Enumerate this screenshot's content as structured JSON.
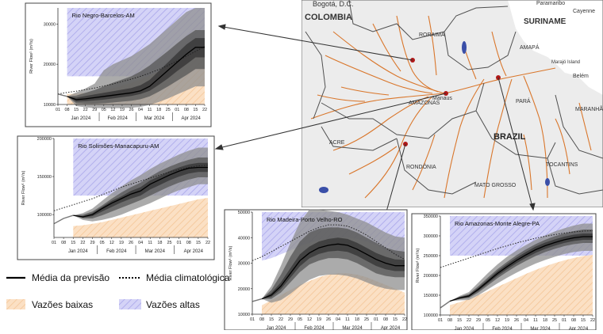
{
  "map": {
    "labels": {
      "bogota": "Bogotá, D.C.",
      "colombia": "COLOMBIA",
      "suriname": "SURINAME",
      "paramaribo": "Paramaribo",
      "cayenne": "Cayenne",
      "roraima": "RORAIMA",
      "amapa": "AMAPÁ",
      "marajo": "Marajó Island",
      "belem": "Belém",
      "amazonas": "AMAZONAS",
      "manaus": "Manaus",
      "para": "PARÁ",
      "maranhao": "MARANHÃO",
      "brazil": "BRAZIL",
      "acre": "ACRE",
      "rondonia": "RONDÔNIA",
      "tocantins": "TOCANTINS",
      "mato_grosso": "MATO GROSSO"
    },
    "colors": {
      "land": "#ececec",
      "river": "#d9762b",
      "border": "#4f4f4f",
      "station": "#b01818"
    }
  },
  "legend": {
    "forecast_mean": "Média da previsão",
    "climatology_mean": "Média climatológica",
    "low_flows": "Vazões baixas",
    "high_flows": "Vazões altas",
    "colors": {
      "low": "#f6cfa6",
      "high": "#b9b7f0"
    }
  },
  "chart_data": [
    {
      "type": "area",
      "title": "Rio Negro-Barcelos-AM",
      "ylabel": "River Flow¹ (m³/s)",
      "xlabel": "",
      "x": [
        "01",
        "08",
        "15",
        "22",
        "29",
        "05",
        "12",
        "19",
        "26",
        "04",
        "11",
        "18",
        "25",
        "01",
        "08",
        "15",
        "22"
      ],
      "month_labels": [
        "Jan 2024",
        "Feb 2024",
        "Mar 2024",
        "Apr 2024"
      ],
      "ylim": [
        10000,
        34000
      ],
      "yticks": [
        10000,
        20000,
        30000
      ],
      "ytick_labels": [
        "10000",
        "20000",
        "30000"
      ],
      "legend": "none",
      "grid": false,
      "high_threshold": [
        17000,
        17000,
        17000,
        17000,
        17000,
        17000,
        17000,
        17000,
        17000,
        17000,
        17000,
        17000,
        17000,
        17000,
        17000,
        17000,
        17000
      ],
      "low_threshold": [
        12500,
        12600,
        12700,
        12900,
        13100,
        13500,
        14000,
        14700,
        15400,
        16200,
        17200,
        18300,
        19500,
        20800,
        22000,
        23300,
        24500
      ],
      "climatology": [
        12600,
        13000,
        13300,
        13700,
        14100,
        14600,
        15100,
        15700,
        16300,
        17000,
        17800,
        18700,
        19700,
        20800,
        22000,
        23200,
        24400
      ],
      "observed": [
        12600,
        12000,
        null,
        null,
        null,
        null,
        null,
        null,
        null,
        null,
        null,
        null,
        null,
        null,
        null,
        null,
        null
      ],
      "forecast_mean": [
        null,
        12000,
        11200,
        11400,
        11700,
        12000,
        12300,
        12600,
        12900,
        13400,
        14500,
        16500,
        18500,
        20500,
        22500,
        24200,
        24200
      ],
      "envelope_outer": {
        "lower": [
          null,
          12000,
          9600,
          9300,
          9100,
          9100,
          9100,
          9100,
          9200,
          9400,
          9900,
          10600,
          11500,
          12500,
          13500,
          14500,
          14500
        ],
        "upper": [
          null,
          12000,
          13000,
          14000,
          15200,
          18500,
          20000,
          21000,
          22000,
          23500,
          25000,
          27000,
          29000,
          31000,
          33000,
          34000,
          34000
        ]
      },
      "envelope_inner": {
        "lower": [
          null,
          12000,
          10300,
          10200,
          10200,
          10300,
          10500,
          10700,
          10900,
          11300,
          12000,
          13200,
          14500,
          15900,
          17300,
          18800,
          18800
        ],
        "upper": [
          null,
          12000,
          12200,
          12900,
          13600,
          14500,
          15400,
          16200,
          17000,
          18200,
          19700,
          21500,
          23300,
          25200,
          27000,
          28500,
          28500
        ]
      },
      "envelope_core": {
        "lower": [
          null,
          12000,
          10700,
          10800,
          11000,
          11200,
          11500,
          11800,
          12100,
          12600,
          13400,
          14900,
          16500,
          18300,
          20000,
          21700,
          21700
        ],
        "upper": [
          null,
          12000,
          11700,
          12100,
          12500,
          12900,
          13300,
          13700,
          14100,
          14800,
          16100,
          18300,
          20500,
          22700,
          24900,
          26500,
          26500
        ]
      }
    },
    {
      "type": "area",
      "title": "Rio Solimões-Manacapuru-AM",
      "ylabel": "River Flow¹ (m³/s)",
      "xlabel": "",
      "x": [
        "01",
        "08",
        "15",
        "22",
        "29",
        "05",
        "12",
        "19",
        "26",
        "04",
        "11",
        "18",
        "25",
        "01",
        "08",
        "15",
        "22"
      ],
      "month_labels": [
        "Jan 2024",
        "Feb 2024",
        "Mar 2024",
        "Apr 2024"
      ],
      "ylim": [
        70000,
        200000
      ],
      "yticks": [
        100000,
        150000,
        200000
      ],
      "ytick_labels": [
        "100000",
        "150000",
        "200000"
      ],
      "legend": "none",
      "grid": false,
      "high_threshold": [
        125000,
        125000,
        125000,
        125000,
        125000,
        125000,
        125000,
        125000,
        125000,
        125000,
        125000,
        125000,
        125000,
        125000,
        125000,
        125000,
        125000
      ],
      "low_threshold": [
        82000,
        84000,
        85000,
        86000,
        88000,
        90000,
        93000,
        96000,
        99000,
        102000,
        105000,
        108000,
        111000,
        114000,
        117000,
        120000,
        122000
      ],
      "climatology": [
        105000,
        109000,
        113000,
        117000,
        121000,
        126000,
        131000,
        136000,
        140000,
        144000,
        148000,
        152000,
        156000,
        159000,
        162000,
        164000,
        165000
      ],
      "observed": [
        88000,
        95000,
        99000,
        null,
        null,
        null,
        null,
        null,
        null,
        null,
        null,
        null,
        null,
        null,
        null,
        null,
        null
      ],
      "forecast_mean": [
        null,
        null,
        99000,
        97000,
        100000,
        108000,
        115000,
        121000,
        127000,
        131000,
        140000,
        146000,
        152000,
        157000,
        161000,
        162000,
        162000
      ],
      "envelope_outer": {
        "lower": [
          null,
          null,
          99000,
          93000,
          91000,
          93000,
          96000,
          100000,
          105000,
          110000,
          115000,
          121000,
          127000,
          132000,
          136000,
          140000,
          140000
        ],
        "upper": [
          null,
          null,
          99000,
          102000,
          108000,
          118000,
          128000,
          137000,
          145000,
          152000,
          160000,
          167000,
          173000,
          179000,
          184000,
          188000,
          188000
        ]
      },
      "envelope_inner": {
        "lower": [
          null,
          null,
          99000,
          95000,
          95000,
          99000,
          104000,
          109000,
          114000,
          119000,
          125000,
          131000,
          137000,
          142000,
          146000,
          149000,
          149000
        ],
        "upper": [
          null,
          null,
          99000,
          100000,
          104000,
          112000,
          121000,
          129000,
          136000,
          142000,
          150000,
          157000,
          163000,
          168000,
          172000,
          175000,
          175000
        ]
      },
      "envelope_core": {
        "lower": [
          null,
          null,
          99000,
          96000,
          98000,
          104000,
          110000,
          116000,
          121000,
          125000,
          133000,
          139000,
          145000,
          150000,
          154000,
          156000,
          156000
        ],
        "upper": [
          null,
          null,
          99000,
          98000,
          102000,
          110000,
          118000,
          124000,
          131000,
          136000,
          145000,
          151000,
          157000,
          162000,
          166000,
          168000,
          168000
        ]
      }
    },
    {
      "type": "area",
      "title": "Rio Madeira-Porto Velho-RO",
      "ylabel": "River Flow¹ (m³/s)",
      "xlabel": "",
      "x": [
        "01",
        "08",
        "15",
        "22",
        "29",
        "05",
        "12",
        "19",
        "26",
        "04",
        "11",
        "18",
        "25",
        "01",
        "08",
        "15",
        "22"
      ],
      "month_labels": [
        "Jan 2024",
        "Feb 2024",
        "Mar 2024",
        "Apr 2024"
      ],
      "ylim": [
        10000,
        50000
      ],
      "yticks": [
        10000,
        20000,
        30000,
        40000,
        50000
      ],
      "ytick_labels": [
        "10000",
        "20000",
        "30000",
        "40000",
        "50000"
      ],
      "legend": "none",
      "grid": false,
      "high_threshold": [
        30000,
        31000,
        32000,
        33500,
        35000,
        36500,
        38000,
        39000,
        39500,
        40000,
        40000,
        39500,
        38500,
        37000,
        35000,
        33000,
        31000
      ],
      "low_threshold": [
        12000,
        13500,
        15500,
        17500,
        19500,
        21500,
        23000,
        24500,
        25500,
        26000,
        26000,
        25500,
        24500,
        23000,
        21500,
        20000,
        18500
      ],
      "climatology": [
        31000,
        32500,
        34500,
        36500,
        38500,
        40500,
        42500,
        44000,
        45000,
        45000,
        44500,
        43000,
        41000,
        38500,
        36000,
        33500,
        31500
      ],
      "observed": [
        15000,
        16000,
        null,
        null,
        null,
        null,
        null,
        null,
        null,
        null,
        null,
        null,
        null,
        null,
        null,
        null,
        null
      ],
      "forecast_mean": [
        null,
        16000,
        17500,
        21000,
        26000,
        31000,
        34000,
        36000,
        37000,
        37500,
        37000,
        35500,
        33500,
        31500,
        30000,
        29000,
        29000
      ],
      "envelope_outer": {
        "lower": [
          null,
          16000,
          14500,
          15500,
          18000,
          21000,
          23500,
          25000,
          25500,
          25500,
          25000,
          24000,
          22500,
          21000,
          20000,
          19500,
          19500
        ],
        "upper": [
          null,
          16000,
          21000,
          29000,
          38000,
          46000,
          51000,
          51000,
          50500,
          50000,
          49000,
          47500,
          46000,
          44000,
          42000,
          40500,
          40000
        ]
      },
      "envelope_inner": {
        "lower": [
          null,
          16000,
          16000,
          18500,
          22500,
          26500,
          29500,
          31000,
          32000,
          32000,
          31500,
          30000,
          28000,
          26000,
          25000,
          24500,
          24500
        ],
        "upper": [
          null,
          16000,
          19500,
          25500,
          32500,
          38500,
          42000,
          43500,
          44000,
          44000,
          43500,
          42000,
          40000,
          38000,
          36000,
          35000,
          34500
        ]
      },
      "envelope_core": {
        "lower": [
          null,
          16000,
          16800,
          19800,
          24300,
          28800,
          31900,
          33600,
          34600,
          34900,
          34400,
          32900,
          30900,
          28900,
          27600,
          26900,
          26900
        ],
        "upper": [
          null,
          16000,
          18300,
          22500,
          28000,
          33500,
          36500,
          38500,
          39500,
          40000,
          39500,
          38000,
          36000,
          34000,
          32500,
          31500,
          31300
        ]
      }
    },
    {
      "type": "area",
      "title": "Rio Amazonas-Monte Alegre-PA",
      "ylabel": "River Flow¹ (m³/s)",
      "xlabel": "",
      "x": [
        "01",
        "08",
        "15",
        "22",
        "29",
        "05",
        "12",
        "19",
        "26",
        "04",
        "11",
        "18",
        "25",
        "01",
        "08",
        "15",
        "22"
      ],
      "month_labels": [
        "Jan 2024",
        "Feb 2024",
        "Mar 2024",
        "Apr 2024"
      ],
      "ylim": [
        100000,
        350000
      ],
      "yticks": [
        100000,
        150000,
        200000,
        250000,
        300000,
        350000
      ],
      "ytick_labels": [
        "100000",
        "150000",
        "200000",
        "250000",
        "300000",
        "350000"
      ],
      "legend": "none",
      "grid": false,
      "high_threshold": [
        250000,
        250000,
        250000,
        250000,
        250000,
        250000,
        250000,
        250000,
        250000,
        250000,
        250000,
        250000,
        250000,
        250000,
        250000,
        250000,
        250000
      ],
      "low_threshold": [
        120000,
        125000,
        132000,
        140000,
        150000,
        160000,
        171000,
        182000,
        193000,
        204000,
        214000,
        223000,
        231000,
        238000,
        244000,
        249000,
        252000
      ],
      "climatology": [
        220000,
        228000,
        236000,
        244000,
        252000,
        260000,
        268000,
        275000,
        282000,
        288000,
        294000,
        299000,
        303000,
        307000,
        310000,
        312000,
        313000
      ],
      "observed": [
        118000,
        135000,
        null,
        null,
        null,
        null,
        null,
        null,
        null,
        null,
        null,
        null,
        null,
        null,
        null,
        null,
        null
      ],
      "forecast_mean": [
        null,
        135000,
        143000,
        148000,
        165000,
        185000,
        205000,
        222000,
        238000,
        252000,
        265000,
        275000,
        283000,
        290000,
        295000,
        298000,
        298000
      ],
      "envelope_outer": {
        "lower": [
          null,
          135000,
          137000,
          138000,
          150000,
          165000,
          180000,
          194000,
          207000,
          219000,
          230000,
          239000,
          247000,
          254000,
          259000,
          262000,
          262000
        ],
        "upper": [
          null,
          135000,
          148000,
          158000,
          182000,
          206000,
          228000,
          247000,
          263000,
          277000,
          290000,
          301000,
          311000,
          319000,
          326000,
          331000,
          331000
        ]
      },
      "envelope_inner": {
        "lower": [
          null,
          135000,
          140000,
          143000,
          157000,
          175000,
          193000,
          209000,
          224000,
          237000,
          249000,
          259000,
          267000,
          274000,
          279000,
          282000,
          282000
        ],
        "upper": [
          null,
          135000,
          146000,
          153000,
          173000,
          195000,
          216000,
          234000,
          251000,
          266000,
          279000,
          290000,
          299000,
          306000,
          312000,
          316000,
          316000
        ]
      },
      "envelope_core": {
        "lower": [
          null,
          135000,
          141500,
          145500,
          161000,
          180000,
          199000,
          215500,
          231000,
          244500,
          257000,
          267000,
          275000,
          282000,
          287000,
          290000,
          290000
        ],
        "upper": [
          null,
          135000,
          144500,
          150500,
          169000,
          190000,
          211000,
          228500,
          245000,
          259500,
          273000,
          283000,
          291000,
          298000,
          303000,
          306000,
          306000
        ]
      }
    }
  ]
}
